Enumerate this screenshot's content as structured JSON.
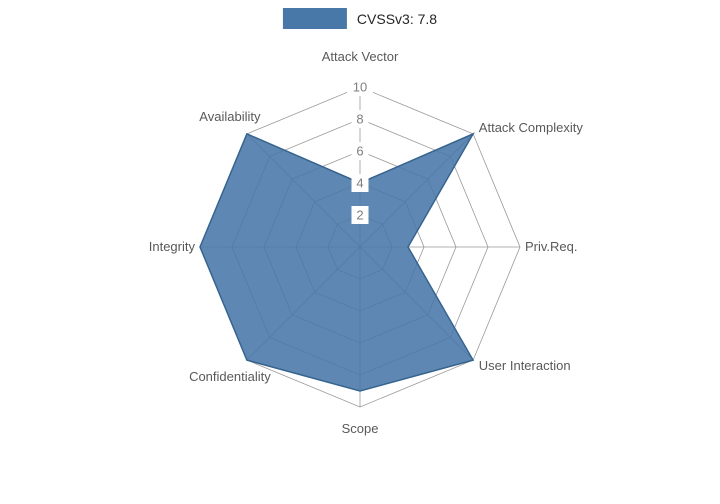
{
  "legend": {
    "label": "CVSSv3: 7.8",
    "swatch_color": "#4878a8"
  },
  "chart_data": {
    "type": "radar",
    "title": "",
    "categories": [
      "Attack Vector",
      "Attack Complexity",
      "Priv.Req.",
      "User Interaction",
      "Scope",
      "Confidentiality",
      "Integrity",
      "Availability"
    ],
    "series": [
      {
        "name": "CVSSv3: 7.8",
        "values": [
          4,
          10,
          3,
          10,
          9,
          10,
          10,
          10
        ]
      }
    ],
    "radial_ticks": [
      2,
      4,
      6,
      8,
      10
    ],
    "rlim": [
      0,
      10
    ],
    "grid": true,
    "legend_position": "top-center",
    "fill_color": "#4878a8",
    "edge_color": "#36648f",
    "grid_color": "#999999",
    "tick_label_color": "#7f7f7f",
    "axis_label_color": "#595959"
  }
}
